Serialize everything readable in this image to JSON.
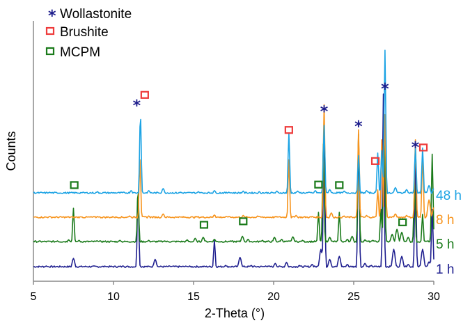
{
  "chart_data": {
    "type": "line",
    "xlabel": "2-Theta (°)",
    "ylabel": "Counts",
    "xlim": [
      5,
      30
    ],
    "xticks": [
      5,
      10,
      15,
      20,
      25,
      30
    ],
    "grid": false,
    "legend": {
      "placement": "top-left",
      "entries": [
        {
          "label": "Wollastonite",
          "marker": "asterisk",
          "color": "#1c1c8c"
        },
        {
          "label": "Brushite",
          "marker": "open-square",
          "color": "#ee3b3b"
        },
        {
          "label": "MCPM",
          "marker": "open-square",
          "color": "#1a7a1a"
        }
      ]
    },
    "series": [
      {
        "name": "1 h",
        "color": "#1f1f8f",
        "offset": 0,
        "base_noise": [
          [
            5,
            4
          ],
          [
            5.8,
            7
          ],
          [
            6.5,
            5
          ],
          [
            7.5,
            22
          ],
          [
            8.2,
            5
          ],
          [
            9.5,
            6
          ],
          [
            10.6,
            7
          ],
          [
            11.53,
            160
          ],
          [
            12.6,
            20
          ],
          [
            13.5,
            7
          ],
          [
            14.6,
            6
          ],
          [
            15.6,
            5
          ],
          [
            16.3,
            58
          ],
          [
            17,
            8
          ],
          [
            17.9,
            24
          ],
          [
            18.6,
            8
          ],
          [
            19.5,
            7
          ],
          [
            20.1,
            12
          ],
          [
            20.8,
            14
          ],
          [
            21.6,
            8
          ],
          [
            22.4,
            10
          ],
          [
            22.95,
            40
          ],
          [
            23.15,
            300
          ],
          [
            23.5,
            20
          ],
          [
            24.1,
            26
          ],
          [
            24.6,
            10
          ],
          [
            25.3,
            270
          ],
          [
            25.7,
            12
          ],
          [
            26.1,
            8
          ],
          [
            26.85,
            350
          ],
          [
            27.5,
            40
          ],
          [
            28.0,
            26
          ],
          [
            28.4,
            10
          ],
          [
            28.85,
            210
          ],
          [
            29.3,
            40
          ],
          [
            29.7,
            15
          ],
          [
            29.9,
            120
          ],
          [
            30.0,
            20
          ]
        ]
      },
      {
        "name": "5 h",
        "color": "#1a7a1a",
        "offset": 1,
        "base_noise": [
          [
            5,
            6
          ],
          [
            6.5,
            7
          ],
          [
            7.2,
            9
          ],
          [
            7.5,
            72
          ],
          [
            7.85,
            8
          ],
          [
            9,
            7
          ],
          [
            10.4,
            8
          ],
          [
            11.53,
            110
          ],
          [
            12.2,
            8
          ],
          [
            13.2,
            7
          ],
          [
            14.6,
            9
          ],
          [
            15.1,
            12
          ],
          [
            15.6,
            14
          ],
          [
            16.3,
            10
          ],
          [
            17.3,
            7
          ],
          [
            18.05,
            16
          ],
          [
            18.4,
            10
          ],
          [
            19.3,
            8
          ],
          [
            20.05,
            14
          ],
          [
            20.5,
            10
          ],
          [
            21.2,
            15
          ],
          [
            21.8,
            8
          ],
          [
            22.8,
            64
          ],
          [
            23.1,
            200
          ],
          [
            23.5,
            14
          ],
          [
            24.1,
            64
          ],
          [
            24.6,
            10
          ],
          [
            24.9,
            16
          ],
          [
            25.3,
            220
          ],
          [
            25.7,
            9
          ],
          [
            26.2,
            8
          ],
          [
            26.7,
            70
          ],
          [
            26.9,
            260
          ],
          [
            27.4,
            20
          ],
          [
            27.7,
            30
          ],
          [
            28.0,
            24
          ],
          [
            28.4,
            14
          ],
          [
            28.8,
            120
          ],
          [
            29.3,
            60
          ],
          [
            29.9,
            180
          ],
          [
            30.0,
            30
          ]
        ]
      },
      {
        "name": "8 h",
        "color": "#f7941d",
        "offset": 2,
        "base_noise": [
          [
            5,
            5
          ],
          [
            6,
            7
          ],
          [
            7,
            5
          ],
          [
            8,
            6
          ],
          [
            9,
            7
          ],
          [
            10,
            6
          ],
          [
            11.0,
            8
          ],
          [
            11.65,
            120
          ],
          [
            12.2,
            8
          ],
          [
            13.1,
            12
          ],
          [
            14,
            6
          ],
          [
            15.2,
            7
          ],
          [
            16.3,
            10
          ],
          [
            17.2,
            7
          ],
          [
            18.1,
            9
          ],
          [
            19,
            8
          ],
          [
            20.2,
            7
          ],
          [
            20.95,
            120
          ],
          [
            21.4,
            9
          ],
          [
            22.4,
            7
          ],
          [
            23.15,
            230
          ],
          [
            23.6,
            14
          ],
          [
            24.4,
            8
          ],
          [
            25.3,
            180
          ],
          [
            25.8,
            9
          ],
          [
            26.5,
            60
          ],
          [
            26.75,
            160
          ],
          [
            26.95,
            210
          ],
          [
            27.6,
            12
          ],
          [
            28.3,
            9
          ],
          [
            28.85,
            160
          ],
          [
            29.3,
            130
          ],
          [
            29.7,
            40
          ],
          [
            30.0,
            25
          ]
        ]
      },
      {
        "name": "48 h",
        "color": "#1ca3e4",
        "offset": 3,
        "base_noise": [
          [
            5,
            6
          ],
          [
            6,
            7
          ],
          [
            7,
            5
          ],
          [
            8,
            6
          ],
          [
            9,
            8
          ],
          [
            10,
            6
          ],
          [
            11.1,
            10
          ],
          [
            11.68,
            165
          ],
          [
            12.2,
            10
          ],
          [
            13.1,
            14
          ],
          [
            14.2,
            7
          ],
          [
            15.3,
            8
          ],
          [
            16.3,
            10
          ],
          [
            17.2,
            7
          ],
          [
            18.1,
            9
          ],
          [
            19.1,
            8
          ],
          [
            20.2,
            9
          ],
          [
            20.95,
            125
          ],
          [
            21.5,
            9
          ],
          [
            22.6,
            10
          ],
          [
            23.15,
            140
          ],
          [
            23.5,
            12
          ],
          [
            24.4,
            9
          ],
          [
            25.3,
            80
          ],
          [
            25.8,
            10
          ],
          [
            26.5,
            85
          ],
          [
            26.75,
            90
          ],
          [
            26.95,
            290
          ],
          [
            27.6,
            16
          ],
          [
            28.3,
            12
          ],
          [
            28.85,
            95
          ],
          [
            29.3,
            95
          ],
          [
            29.7,
            20
          ],
          [
            30.0,
            14
          ]
        ]
      }
    ],
    "markers": [
      {
        "type": "wollastonite",
        "x": 11.45,
        "y_series": "48 h",
        "above": 167
      },
      {
        "type": "brushite",
        "x": 11.95,
        "y_series": "48 h",
        "above": 185
      },
      {
        "type": "wollastonite",
        "x": 23.15,
        "y_series": "48 h",
        "above": 155
      },
      {
        "type": "wollastonite",
        "x": 25.3,
        "y_series": "48 h",
        "above": 125
      },
      {
        "type": "wollastonite",
        "x": 26.95,
        "y_series": "48 h",
        "above": 200
      },
      {
        "type": "wollastonite",
        "x": 28.85,
        "y_series": "48 h",
        "above": 83
      },
      {
        "type": "brushite",
        "x": 20.95,
        "y_series": "48 h",
        "above": 115
      },
      {
        "type": "brushite",
        "x": 26.35,
        "y_series": "48 h",
        "above": 53
      },
      {
        "type": "brushite",
        "x": 29.35,
        "y_series": "48 h",
        "above": 80
      },
      {
        "type": "mcpm",
        "x": 7.55,
        "y_series": "48 h",
        "above": 5
      },
      {
        "type": "mcpm",
        "x": 22.8,
        "y_series": "48 h",
        "above": 6
      },
      {
        "type": "mcpm",
        "x": 24.1,
        "y_series": "48 h",
        "above": 5
      },
      {
        "type": "mcpm",
        "x": 15.65,
        "y_series": "5 h",
        "above": 23
      },
      {
        "type": "mcpm",
        "x": 18.1,
        "y_series": "5 h",
        "above": 30
      },
      {
        "type": "mcpm",
        "x": 28.05,
        "y_series": "5 h",
        "above": 28
      }
    ]
  }
}
